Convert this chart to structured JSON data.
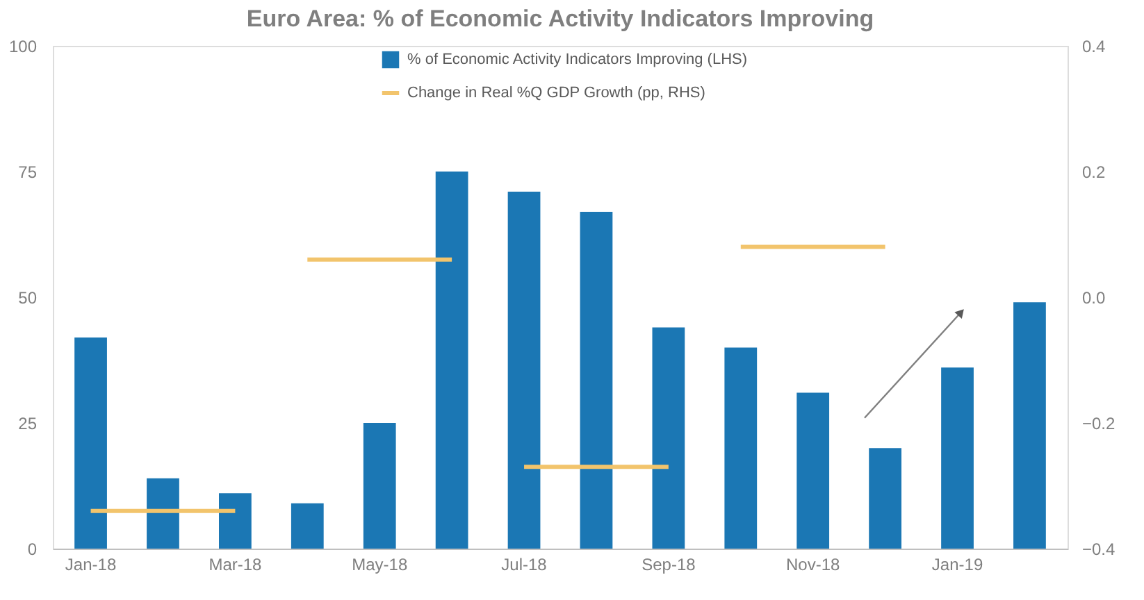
{
  "chart_data": {
    "type": "bar",
    "title": "Euro Area: % of Economic Activity Indicators Improving",
    "categories": [
      "Jan-18",
      null,
      "Mar-18",
      null,
      "May-18",
      null,
      "Jul-18",
      null,
      "Sep-18",
      null,
      "Nov-18",
      null,
      "Jan-19",
      null
    ],
    "series": [
      {
        "name": "% of Economic Activity Indicators Improving (LHS)",
        "color": "#1b77b4",
        "values": [
          42,
          14,
          11,
          9,
          25,
          75,
          71,
          67,
          44,
          40,
          31,
          20,
          36,
          49
        ]
      },
      {
        "name": "Change in Real %Q GDP Growth (pp, RHS)",
        "type": "line",
        "axis": "y2",
        "color": "#f2c46c",
        "values": [
          -0.34,
          -0.34,
          -0.34,
          null,
          null,
          null,
          null,
          null,
          null,
          null,
          null,
          null,
          null,
          null
        ]
      },
      {
        "type": "line",
        "axis": "y2",
        "color": "#f2c46c",
        "values": [
          null,
          null,
          null,
          0.06,
          0.06,
          0.06,
          null,
          null,
          null,
          null,
          null,
          null,
          null,
          null
        ]
      },
      {
        "type": "line",
        "axis": "y2",
        "color": "#f2c46c",
        "values": [
          null,
          null,
          null,
          null,
          null,
          null,
          -0.27,
          -0.27,
          -0.27,
          null,
          null,
          null,
          null,
          null
        ]
      },
      {
        "type": "line",
        "axis": "y2",
        "color": "#f2c46c",
        "values": [
          null,
          null,
          null,
          null,
          null,
          null,
          null,
          null,
          null,
          0.08,
          0.08,
          0.08,
          null,
          null
        ]
      }
    ],
    "ylim": [
      0,
      100
    ],
    "yticks": [
      0,
      25,
      50,
      75,
      100
    ],
    "y2lim": [
      -0.4,
      0.4
    ],
    "y2ticks": [
      -0.4,
      -0.2,
      {
        "value": 0,
        "label": "0.0"
      },
      0.2,
      0.4
    ],
    "grid": false,
    "legend": "top"
  }
}
